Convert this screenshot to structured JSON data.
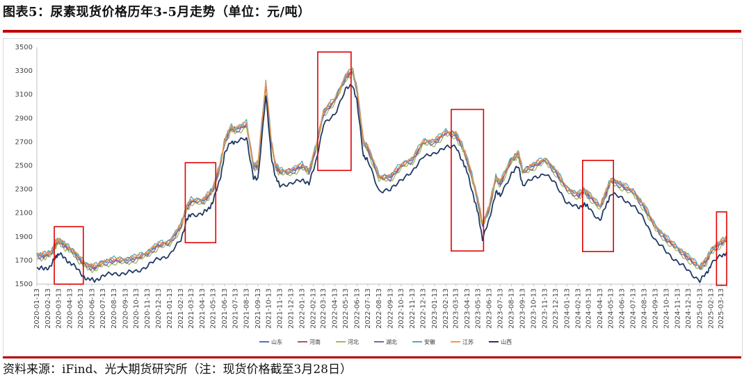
{
  "title": "图表5：尿素现货价格历年3-5月走势（单位：元/吨）",
  "source": "资料来源：iFind、光大期货研究所（注：现货价格截至3月28日）",
  "colors": {
    "accent_red": "#c00000",
    "highlight_box": "#e00000"
  },
  "chart_data": {
    "type": "line",
    "title": "",
    "xlabel": "",
    "ylabel": "",
    "ylim": [
      1500,
      3500
    ],
    "yticks": [
      1500,
      1700,
      1900,
      2100,
      2300,
      2500,
      2700,
      2900,
      3100,
      3300,
      3500
    ],
    "xlim": [
      "2020-01-13",
      "2025-03-28"
    ],
    "xticks": [
      "2020-01-13",
      "2020-02-13",
      "2020-03-13",
      "2020-04-13",
      "2020-05-13",
      "2020-06-13",
      "2020-07-13",
      "2020-08-13",
      "2020-09-13",
      "2020-10-13",
      "2020-11-13",
      "2020-12-13",
      "2021-01-13",
      "2021-02-13",
      "2021-03-13",
      "2021-04-13",
      "2021-05-13",
      "2021-06-13",
      "2021-07-13",
      "2021-08-13",
      "2021-09-13",
      "2021-10-13",
      "2021-11-13",
      "2021-12-13",
      "2022-01-13",
      "2022-02-13",
      "2022-03-13",
      "2022-04-13",
      "2022-05-13",
      "2022-06-13",
      "2022-07-13",
      "2022-08-13",
      "2022-09-13",
      "2022-10-13",
      "2022-11-13",
      "2022-12-13",
      "2023-01-13",
      "2023-02-13",
      "2023-03-13",
      "2023-04-13",
      "2023-05-13",
      "2023-06-13",
      "2023-07-13",
      "2023-08-13",
      "2023-09-13",
      "2023-10-13",
      "2023-11-13",
      "2023-12-13",
      "2024-01-13",
      "2024-02-13",
      "2024-03-13",
      "2024-04-13",
      "2024-05-13",
      "2024-06-13",
      "2024-07-13",
      "2024-08-13",
      "2024-09-13",
      "2024-10-13",
      "2024-11-13",
      "2024-12-13",
      "2025-01-13",
      "2025-02-13",
      "2025-03-13"
    ],
    "grid": false,
    "legend_position": "bottom",
    "series": [
      {
        "name": "山东",
        "color": "#4472c4",
        "offset": 0
      },
      {
        "name": "河南",
        "color": "#c0504d",
        "offset": 5
      },
      {
        "name": "河北",
        "color": "#9bbb59",
        "offset": -25
      },
      {
        "name": "湖北",
        "color": "#8064a2",
        "offset": -10
      },
      {
        "name": "安徽",
        "color": "#4bacc6",
        "offset": 18
      },
      {
        "name": "江苏",
        "color": "#f79646",
        "offset": 12
      },
      {
        "name": "山西",
        "color": "#1f3864",
        "offset": -110
      }
    ],
    "base_points": [
      [
        "2020-01-13",
        1740
      ],
      [
        "2020-02-01",
        1740
      ],
      [
        "2020-02-20",
        1760
      ],
      [
        "2020-03-05",
        1840
      ],
      [
        "2020-03-13",
        1870
      ],
      [
        "2020-04-01",
        1820
      ],
      [
        "2020-04-20",
        1780
      ],
      [
        "2020-05-13",
        1700
      ],
      [
        "2020-06-01",
        1650
      ],
      [
        "2020-06-20",
        1640
      ],
      [
        "2020-07-13",
        1680
      ],
      [
        "2020-08-13",
        1700
      ],
      [
        "2020-09-13",
        1700
      ],
      [
        "2020-10-13",
        1720
      ],
      [
        "2020-11-13",
        1760
      ],
      [
        "2020-12-13",
        1830
      ],
      [
        "2021-01-13",
        1850
      ],
      [
        "2021-02-13",
        1990
      ],
      [
        "2021-03-01",
        2150
      ],
      [
        "2021-03-13",
        2200
      ],
      [
        "2021-04-13",
        2200
      ],
      [
        "2021-05-01",
        2250
      ],
      [
        "2021-05-13",
        2310
      ],
      [
        "2021-06-01",
        2500
      ],
      [
        "2021-06-13",
        2700
      ],
      [
        "2021-07-01",
        2820
      ],
      [
        "2021-07-13",
        2800
      ],
      [
        "2021-08-13",
        2850
      ],
      [
        "2021-09-01",
        2500
      ],
      [
        "2021-09-13",
        2500
      ],
      [
        "2021-10-05",
        3200
      ],
      [
        "2021-10-20",
        2700
      ],
      [
        "2021-11-01",
        2500
      ],
      [
        "2021-11-13",
        2450
      ],
      [
        "2021-12-13",
        2450
      ],
      [
        "2022-01-13",
        2500
      ],
      [
        "2022-02-01",
        2450
      ],
      [
        "2022-02-20",
        2650
      ],
      [
        "2022-03-13",
        2950
      ],
      [
        "2022-04-13",
        3050
      ],
      [
        "2022-05-13",
        3250
      ],
      [
        "2022-06-01",
        3300
      ],
      [
        "2022-06-13",
        3150
      ],
      [
        "2022-07-01",
        2700
      ],
      [
        "2022-07-13",
        2650
      ],
      [
        "2022-08-13",
        2400
      ],
      [
        "2022-09-13",
        2400
      ],
      [
        "2022-10-13",
        2500
      ],
      [
        "2022-11-13",
        2550
      ],
      [
        "2022-12-13",
        2700
      ],
      [
        "2023-01-13",
        2700
      ],
      [
        "2023-02-13",
        2780
      ],
      [
        "2023-03-13",
        2760
      ],
      [
        "2023-04-01",
        2650
      ],
      [
        "2023-04-13",
        2550
      ],
      [
        "2023-05-01",
        2350
      ],
      [
        "2023-05-13",
        2200
      ],
      [
        "2023-05-25",
        2000
      ],
      [
        "2023-06-13",
        2150
      ],
      [
        "2023-07-01",
        2400
      ],
      [
        "2023-07-13",
        2350
      ],
      [
        "2023-08-13",
        2550
      ],
      [
        "2023-09-01",
        2600
      ],
      [
        "2023-09-13",
        2450
      ],
      [
        "2023-10-13",
        2500
      ],
      [
        "2023-11-13",
        2550
      ],
      [
        "2023-12-13",
        2450
      ],
      [
        "2024-01-13",
        2300
      ],
      [
        "2024-02-13",
        2250
      ],
      [
        "2024-03-01",
        2290
      ],
      [
        "2024-03-13",
        2250
      ],
      [
        "2024-04-13",
        2150
      ],
      [
        "2024-05-01",
        2280
      ],
      [
        "2024-05-13",
        2380
      ],
      [
        "2024-06-13",
        2330
      ],
      [
        "2024-07-13",
        2280
      ],
      [
        "2024-08-13",
        2150
      ],
      [
        "2024-09-13",
        1980
      ],
      [
        "2024-10-13",
        1880
      ],
      [
        "2024-11-13",
        1800
      ],
      [
        "2024-12-13",
        1720
      ],
      [
        "2025-01-13",
        1640
      ],
      [
        "2025-02-01",
        1700
      ],
      [
        "2025-02-13",
        1780
      ],
      [
        "2025-03-13",
        1850
      ],
      [
        "2025-03-28",
        1880
      ]
    ],
    "highlight_boxes": [
      {
        "x0": "2020-03-01",
        "x1": "2020-05-20",
        "y0": 1500,
        "y1": 1985
      },
      {
        "x0": "2021-02-25",
        "x1": "2021-05-20",
        "y0": 1850,
        "y1": 2525
      },
      {
        "x0": "2022-02-25",
        "x1": "2022-05-28",
        "y0": 2460,
        "y1": 3460
      },
      {
        "x0": "2023-02-28",
        "x1": "2023-05-28",
        "y0": 1780,
        "y1": 2975
      },
      {
        "x0": "2024-02-25",
        "x1": "2024-05-20",
        "y0": 1775,
        "y1": 2545
      },
      {
        "x0": "2025-02-28",
        "x1": "2025-03-28",
        "y0": 1490,
        "y1": 2110
      }
    ]
  }
}
